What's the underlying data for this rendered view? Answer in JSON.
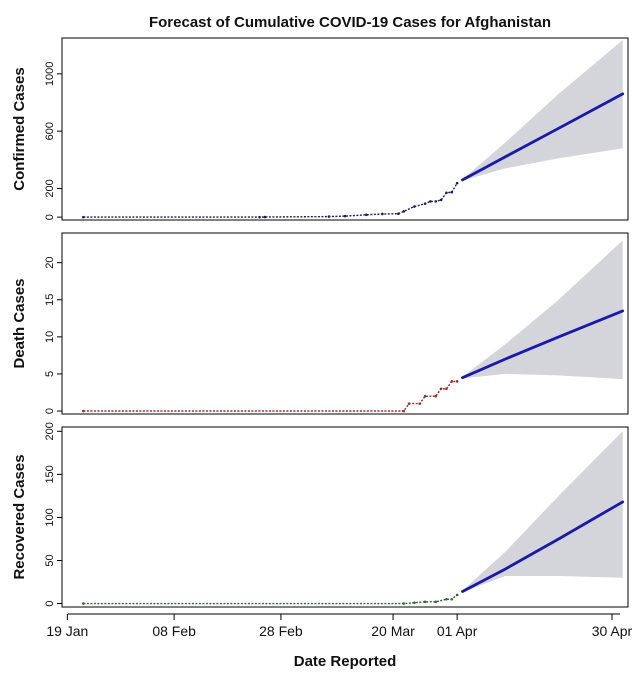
{
  "title": "Forecast of Cumulative COVID-19 Cases for Afghanistan",
  "xlabel": "Date Reported",
  "x_ticks": [
    "19 Jan",
    "08 Feb",
    "28 Feb",
    "20 Mar",
    "01 Apr",
    "30 Apr"
  ],
  "colors": {
    "forecast_line": "#1a1aa8",
    "band": "#d3d5db",
    "confirmed": "#1b1b5e",
    "death": "#9e2a2a",
    "recovered": "#2e6b2e"
  },
  "chart_data": [
    {
      "type": "line",
      "ylabel": "Confirmed Cases",
      "xlim": [
        "2020-01-18",
        "2020-05-03"
      ],
      "ylim": [
        -20,
        1250
      ],
      "yticks": [
        0,
        200,
        600,
        1000
      ],
      "observed": [
        {
          "x": "2020-01-22",
          "y": 0
        },
        {
          "x": "2020-02-24",
          "y": 0
        },
        {
          "x": "2020-02-25",
          "y": 1
        },
        {
          "x": "2020-03-08",
          "y": 4
        },
        {
          "x": "2020-03-11",
          "y": 7
        },
        {
          "x": "2020-03-15",
          "y": 16
        },
        {
          "x": "2020-03-18",
          "y": 22
        },
        {
          "x": "2020-03-21",
          "y": 24
        },
        {
          "x": "2020-03-22",
          "y": 40
        },
        {
          "x": "2020-03-24",
          "y": 74
        },
        {
          "x": "2020-03-26",
          "y": 94
        },
        {
          "x": "2020-03-27",
          "y": 110
        },
        {
          "x": "2020-03-28",
          "y": 110
        },
        {
          "x": "2020-03-29",
          "y": 120
        },
        {
          "x": "2020-03-30",
          "y": 170
        },
        {
          "x": "2020-03-31",
          "y": 174
        },
        {
          "x": "2020-04-01",
          "y": 237
        }
      ],
      "forecast": {
        "x": [
          "2020-04-02",
          "2020-04-10",
          "2020-04-20",
          "2020-05-02"
        ],
        "mean": [
          260,
          420,
          620,
          860
        ],
        "lower": [
          255,
          340,
          410,
          480
        ],
        "upper": [
          265,
          520,
          860,
          1235
        ]
      }
    },
    {
      "type": "line",
      "ylabel": "Death Cases",
      "xlim": [
        "2020-01-18",
        "2020-05-03"
      ],
      "ylim": [
        -0.4,
        24
      ],
      "yticks": [
        0,
        5,
        10,
        15,
        20
      ],
      "observed": [
        {
          "x": "2020-01-22",
          "y": 0
        },
        {
          "x": "2020-03-22",
          "y": 0
        },
        {
          "x": "2020-03-23",
          "y": 1
        },
        {
          "x": "2020-03-25",
          "y": 1
        },
        {
          "x": "2020-03-26",
          "y": 2
        },
        {
          "x": "2020-03-28",
          "y": 2
        },
        {
          "x": "2020-03-29",
          "y": 3
        },
        {
          "x": "2020-03-30",
          "y": 3
        },
        {
          "x": "2020-03-31",
          "y": 4
        },
        {
          "x": "2020-04-01",
          "y": 4
        }
      ],
      "forecast": {
        "x": [
          "2020-04-02",
          "2020-04-10",
          "2020-04-20",
          "2020-05-02"
        ],
        "mean": [
          4.5,
          7,
          10,
          13.5
        ],
        "lower": [
          4.4,
          5,
          4.8,
          4.3
        ],
        "upper": [
          4.6,
          9,
          15,
          23
        ]
      }
    },
    {
      "type": "line",
      "ylabel": "Recovered Cases",
      "xlim": [
        "2020-01-18",
        "2020-05-03"
      ],
      "ylim": [
        -4,
        205
      ],
      "yticks": [
        0,
        50,
        100,
        150,
        200
      ],
      "observed": [
        {
          "x": "2020-01-22",
          "y": 0
        },
        {
          "x": "2020-03-22",
          "y": 0
        },
        {
          "x": "2020-03-24",
          "y": 1
        },
        {
          "x": "2020-03-26",
          "y": 2
        },
        {
          "x": "2020-03-28",
          "y": 2
        },
        {
          "x": "2020-03-30",
          "y": 5
        },
        {
          "x": "2020-03-31",
          "y": 5
        },
        {
          "x": "2020-04-01",
          "y": 10
        }
      ],
      "forecast": {
        "x": [
          "2020-04-02",
          "2020-04-10",
          "2020-04-20",
          "2020-05-02"
        ],
        "mean": [
          14,
          40,
          75,
          118
        ],
        "lower": [
          13,
          32,
          32,
          30
        ],
        "upper": [
          15,
          60,
          125,
          200
        ]
      }
    }
  ]
}
